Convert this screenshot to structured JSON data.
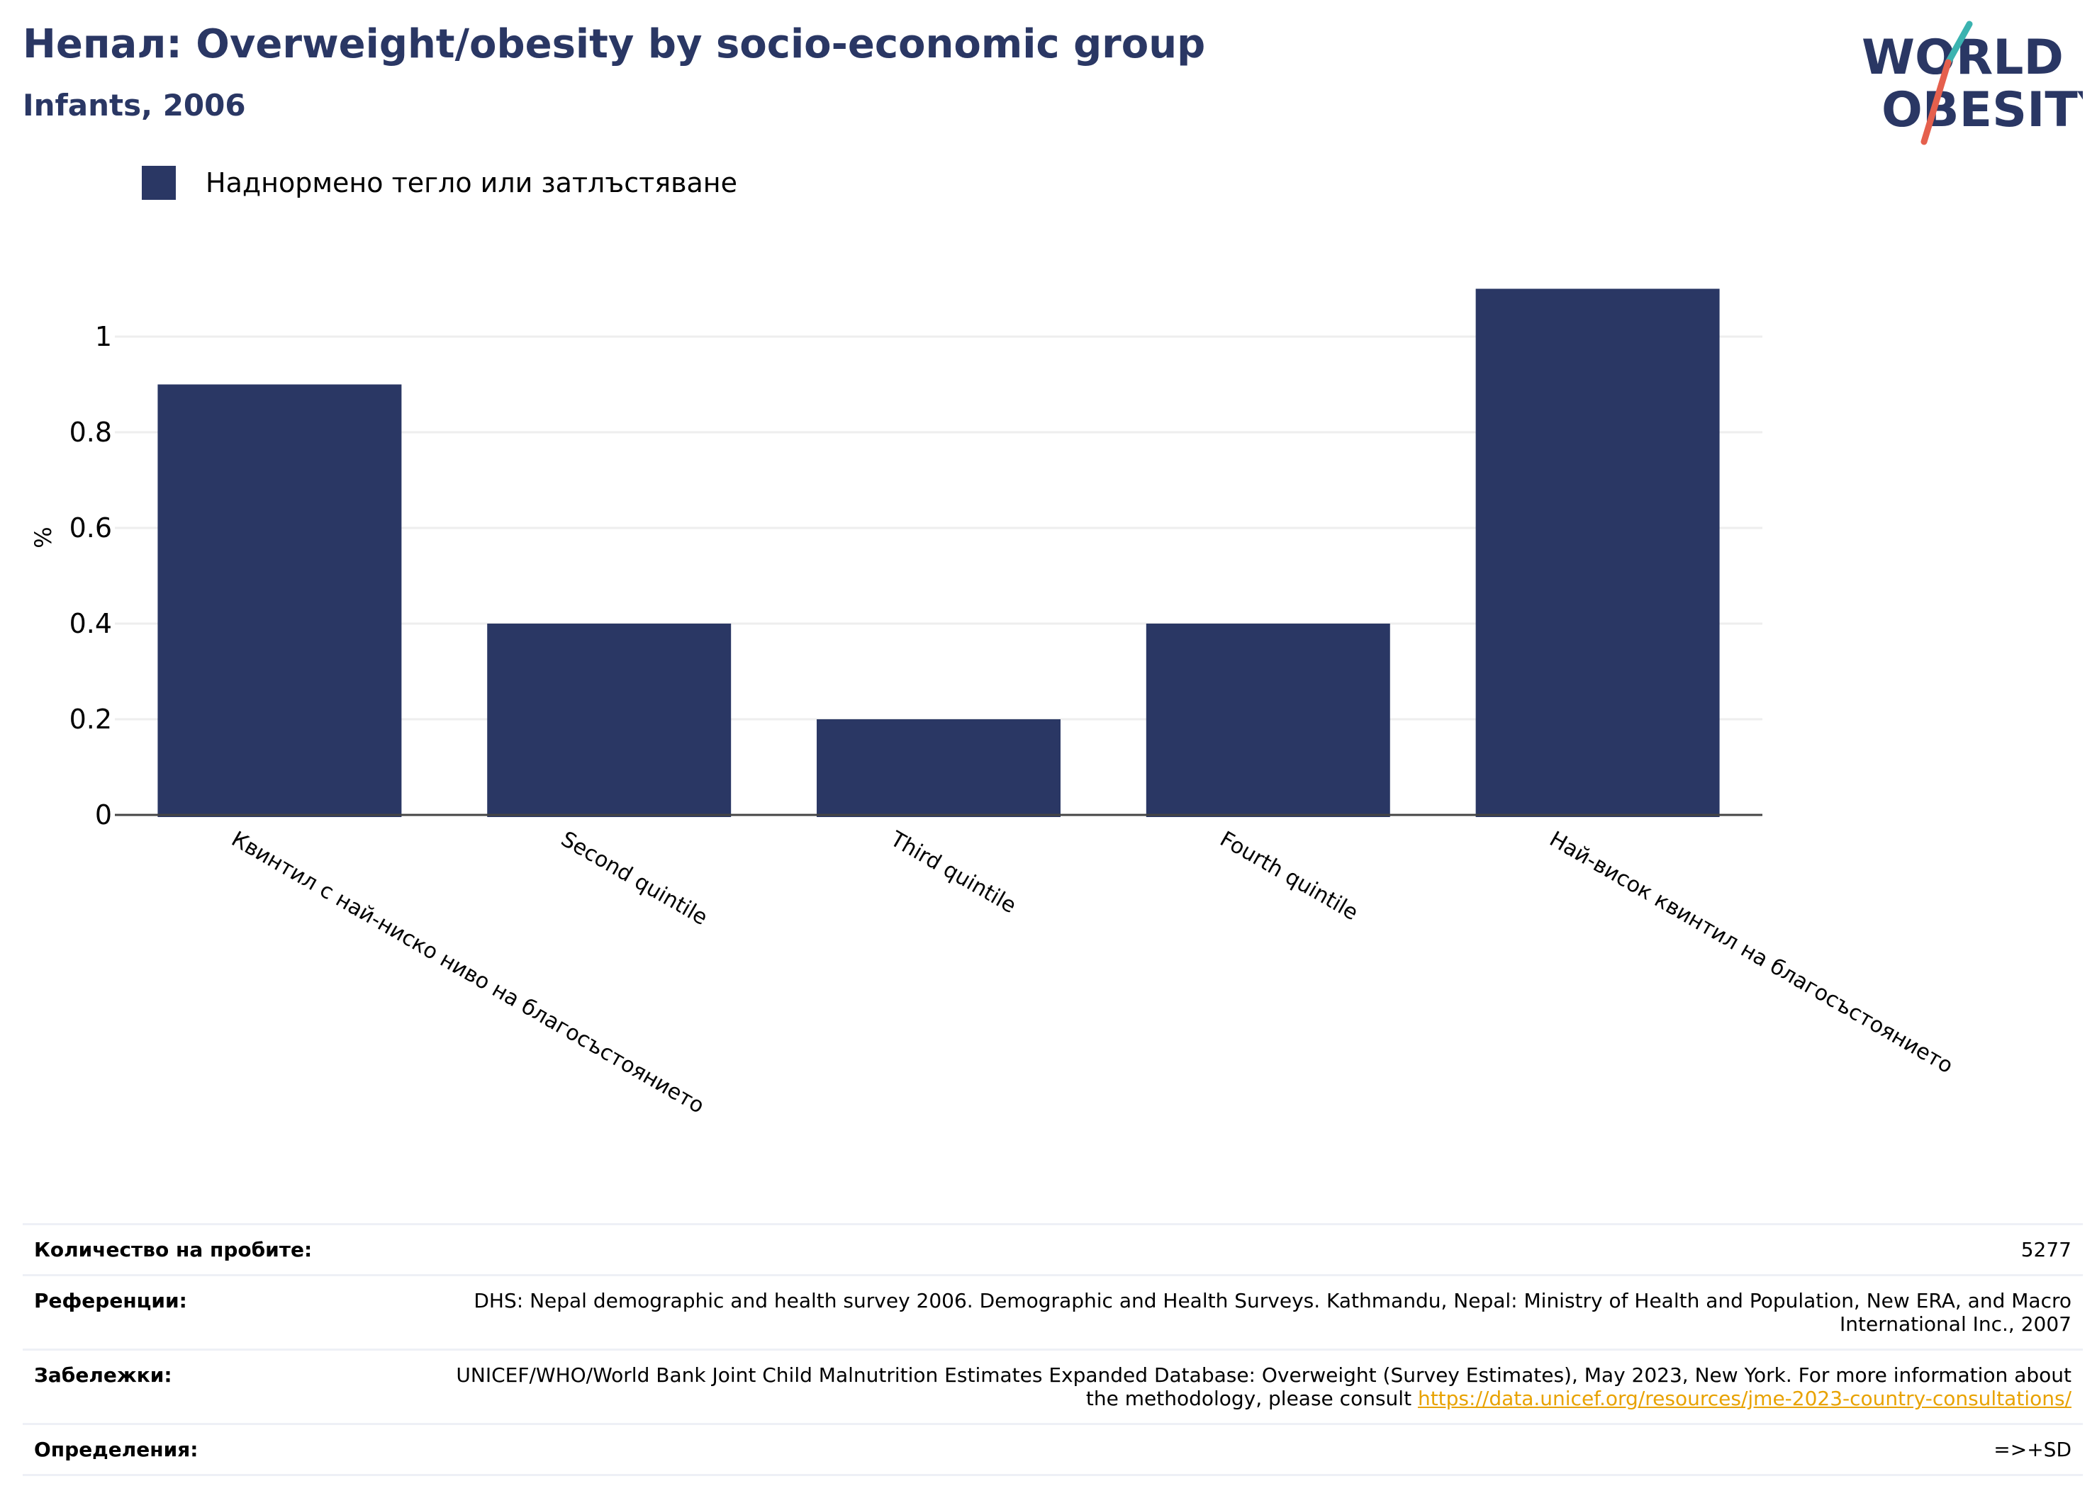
{
  "header": {
    "title": "Непал: Overweight/obesity by socio-economic group",
    "subtitle": "Infants, 2006"
  },
  "logo": {
    "line1": "WORLD",
    "line2": "OBESITY"
  },
  "colors": {
    "bar": "#2a3764",
    "title": "#2a3764",
    "link": "#e8a200",
    "grid": "#eeeeee",
    "logo_teal": "#3bb3b0",
    "logo_red": "#e5604d"
  },
  "chart_data": {
    "type": "bar",
    "categories": [
      "Квинтил с най-ниско ниво на благосъстоянието",
      "Second quintile",
      "Third quintile",
      "Fourth quintile",
      "Най-висок квинтил на благосъстоянието"
    ],
    "series": [
      {
        "name": "Наднормено тегло или затлъстяване",
        "values": [
          0.9,
          0.4,
          0.2,
          0.4,
          1.1
        ]
      }
    ],
    "ylabel": "%",
    "ylim": [
      0,
      1.1
    ],
    "yticks": [
      "0",
      "0.2",
      "0.4",
      "0.6",
      "0.8",
      "1"
    ],
    "grid": true,
    "legend": "top-left"
  },
  "footer": {
    "sample_size_label": "Количество на пробите:",
    "sample_size_value": "5277",
    "references_label": "Референции:",
    "references_value": "DHS: Nepal demographic and health survey 2006. Demographic and Health Surveys. Kathmandu, Nepal: Ministry of Health and Population, New ERA, and Macro International Inc., 2007",
    "notes_label": "Забележки:",
    "notes_value": "UNICEF/WHO/World Bank Joint Child Malnutrition Estimates Expanded Database: Overweight (Survey Estimates), May 2023, New York. For more information about the methodology, please consult ",
    "notes_link": "https://data.unicef.org/resources/jme-2023-country-consultations/",
    "definitions_label": "Определения:",
    "definitions_value": "=>+SD"
  }
}
